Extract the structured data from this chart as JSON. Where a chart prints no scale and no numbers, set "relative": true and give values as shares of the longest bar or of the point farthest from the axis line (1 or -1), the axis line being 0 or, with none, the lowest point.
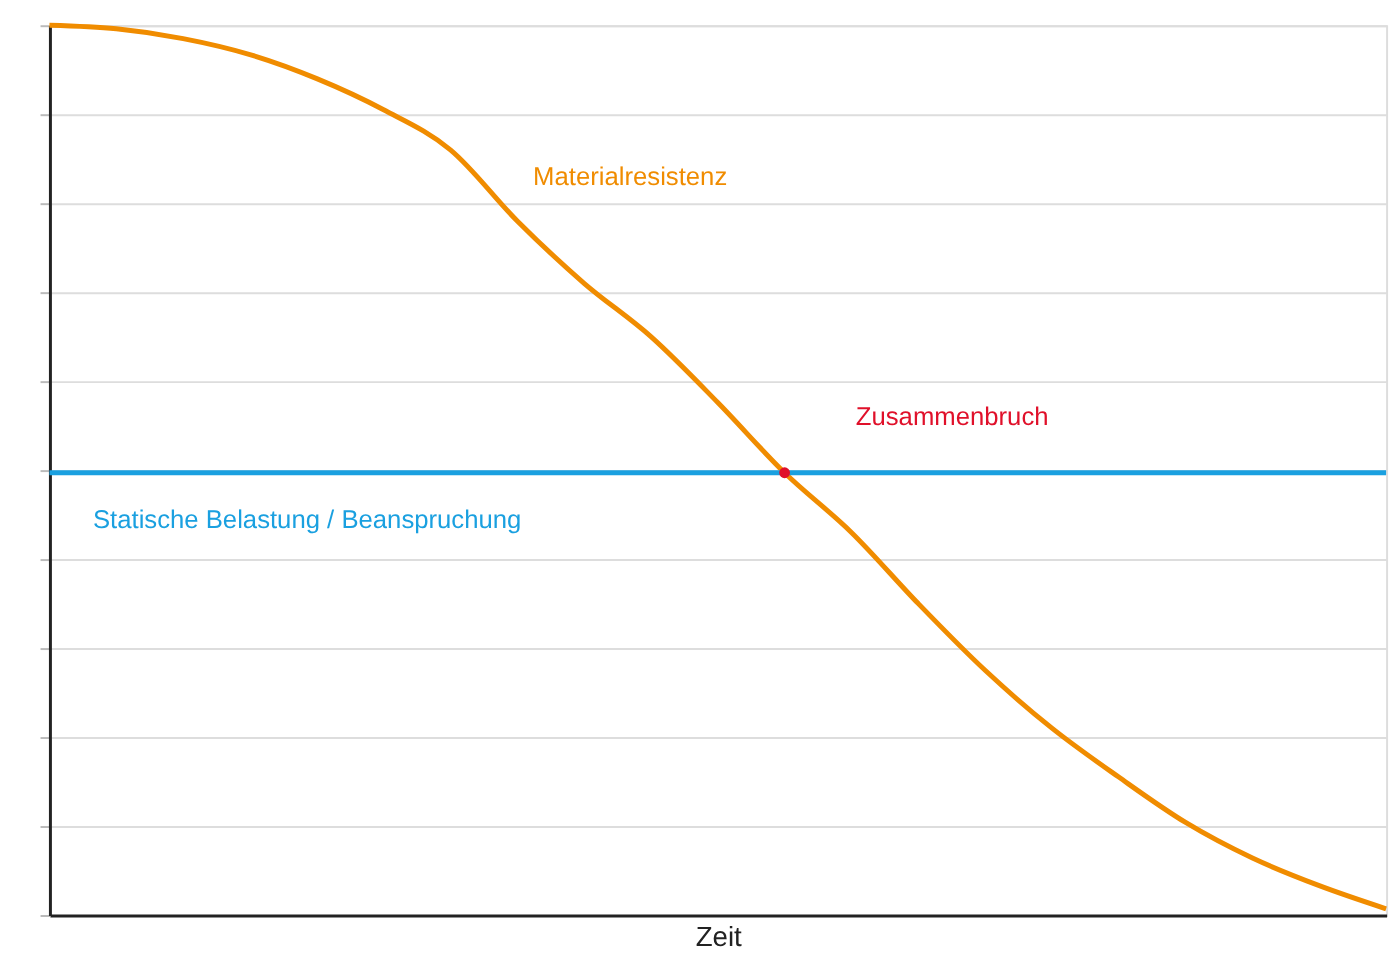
{
  "chart_data": {
    "type": "line",
    "relative": true,
    "xlabel": "Zeit",
    "categories": [
      null,
      null,
      null,
      null,
      null,
      null,
      null,
      null,
      null,
      null,
      null,
      null,
      null,
      null,
      null,
      null,
      null,
      null,
      null,
      null,
      null
    ],
    "series": [
      {
        "name": "Materialresistenz",
        "color": "#f08c00",
        "values": [
          1.0,
          0.996,
          0.985,
          0.967,
          0.94,
          0.905,
          0.86,
          0.78,
          0.71,
          0.65,
          0.576,
          0.497,
          0.43,
          0.35,
          0.275,
          0.21,
          0.155,
          0.104,
          0.064,
          0.033,
          0.007
        ]
      }
    ],
    "ref_lines": [
      {
        "axis": "y",
        "value": 0.497,
        "label": "Statische Belastung / Beanspruchung",
        "color": "#1aa0e0"
      }
    ],
    "annotations": [
      {
        "text": "Zusammenbruch",
        "y": 0.497
      }
    ],
    "grid": "y",
    "tick_labels": false,
    "marker": "none",
    "line_style": "solid"
  }
}
